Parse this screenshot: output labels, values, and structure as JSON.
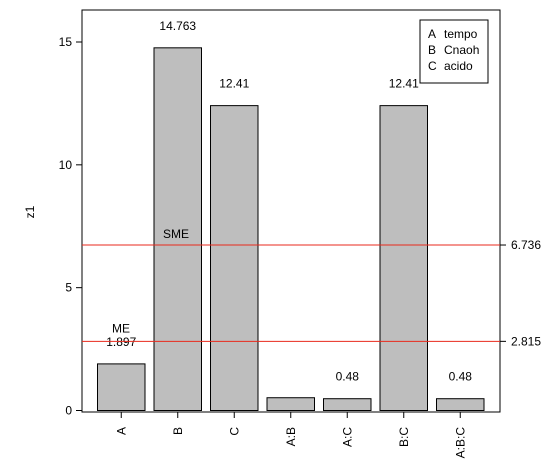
{
  "chart_data": {
    "type": "bar",
    "ylabel": "z1",
    "ylim": [
      0,
      16.5
    ],
    "yticks": [
      0,
      5,
      10,
      15
    ],
    "categories": [
      "A",
      "B",
      "C",
      "A:B",
      "A:C",
      "B:C",
      "A:B:C"
    ],
    "values": [
      1.897,
      14.763,
      12.41,
      0.52,
      0.48,
      12.41,
      0.48
    ],
    "bar_labels": [
      "1.897",
      "14.763",
      "12.41",
      "",
      "0.48",
      "12.41",
      "0.48"
    ],
    "bar_color": "#bebebe",
    "reference_lines": [
      {
        "label": "ME",
        "value": 2.815,
        "value_label": "2.815",
        "color": "#e8291c"
      },
      {
        "label": "SME",
        "value": 6.736,
        "value_label": "6.736",
        "color": "#e8291c"
      }
    ],
    "legend": {
      "position": "top-right",
      "entries": [
        {
          "key": "A",
          "name": "tempo"
        },
        {
          "key": "B",
          "name": "Cnaoh"
        },
        {
          "key": "C",
          "name": "acido"
        }
      ]
    },
    "grid": false
  }
}
